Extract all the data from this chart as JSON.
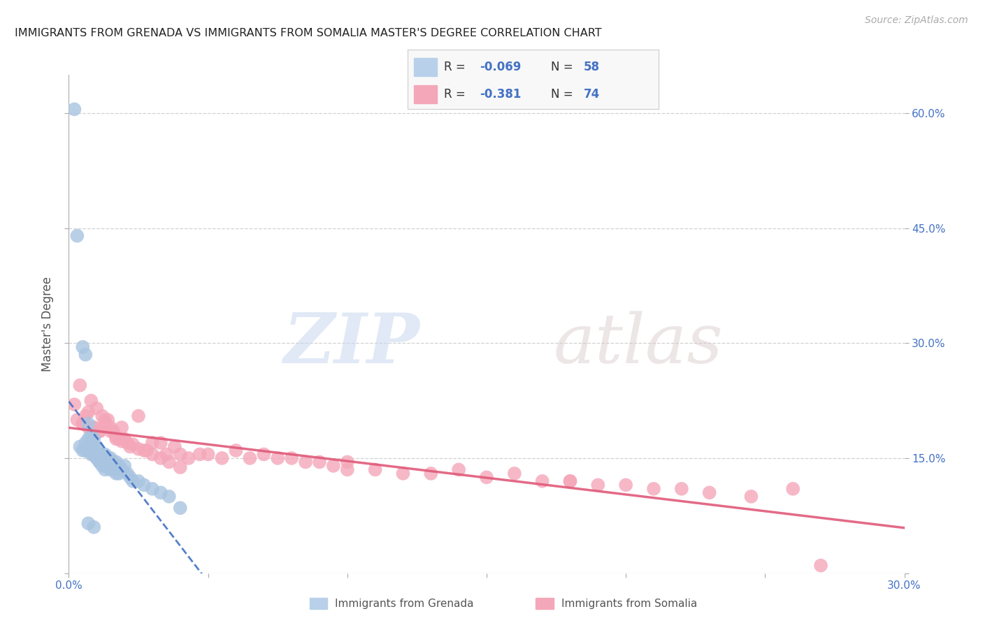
{
  "title": "IMMIGRANTS FROM GRENADA VS IMMIGRANTS FROM SOMALIA MASTER'S DEGREE CORRELATION CHART",
  "source": "Source: ZipAtlas.com",
  "ylabel": "Master's Degree",
  "xlim": [
    0.0,
    0.3
  ],
  "ylim": [
    0.0,
    0.65
  ],
  "grenada_R": -0.069,
  "grenada_N": 58,
  "somalia_R": -0.381,
  "somalia_N": 74,
  "grenada_color": "#a8c4e0",
  "somalia_color": "#f4a7b9",
  "grenada_line_color": "#4472c4",
  "somalia_line_color": "#e05a7a",
  "background_color": "#ffffff",
  "grid_color": "#cccccc",
  "tick_color_blue": "#4472c4",
  "axis_label_color": "#555555",
  "grenada_x": [
    0.002,
    0.003,
    0.004,
    0.005,
    0.005,
    0.006,
    0.006,
    0.007,
    0.007,
    0.007,
    0.008,
    0.008,
    0.008,
    0.009,
    0.009,
    0.009,
    0.01,
    0.01,
    0.01,
    0.011,
    0.011,
    0.011,
    0.012,
    0.012,
    0.013,
    0.013,
    0.013,
    0.014,
    0.014,
    0.015,
    0.015,
    0.016,
    0.016,
    0.017,
    0.017,
    0.018,
    0.018,
    0.019,
    0.02,
    0.021,
    0.022,
    0.023,
    0.025,
    0.027,
    0.03,
    0.033,
    0.036,
    0.04,
    0.006,
    0.007,
    0.008,
    0.009,
    0.01,
    0.011,
    0.012,
    0.013,
    0.007,
    0.009
  ],
  "grenada_y": [
    0.605,
    0.44,
    0.165,
    0.295,
    0.16,
    0.285,
    0.16,
    0.195,
    0.175,
    0.16,
    0.18,
    0.165,
    0.155,
    0.175,
    0.165,
    0.155,
    0.165,
    0.155,
    0.15,
    0.155,
    0.148,
    0.145,
    0.155,
    0.148,
    0.155,
    0.145,
    0.14,
    0.15,
    0.14,
    0.15,
    0.135,
    0.145,
    0.135,
    0.145,
    0.13,
    0.14,
    0.13,
    0.135,
    0.14,
    0.13,
    0.125,
    0.12,
    0.12,
    0.115,
    0.11,
    0.105,
    0.1,
    0.085,
    0.17,
    0.165,
    0.16,
    0.155,
    0.15,
    0.145,
    0.14,
    0.135,
    0.065,
    0.06
  ],
  "somalia_x": [
    0.002,
    0.003,
    0.004,
    0.005,
    0.006,
    0.007,
    0.008,
    0.009,
    0.01,
    0.011,
    0.012,
    0.013,
    0.014,
    0.015,
    0.016,
    0.017,
    0.018,
    0.019,
    0.02,
    0.022,
    0.025,
    0.028,
    0.03,
    0.033,
    0.035,
    0.038,
    0.04,
    0.043,
    0.047,
    0.05,
    0.055,
    0.06,
    0.065,
    0.07,
    0.075,
    0.08,
    0.085,
    0.09,
    0.095,
    0.1,
    0.11,
    0.12,
    0.13,
    0.14,
    0.15,
    0.16,
    0.17,
    0.18,
    0.19,
    0.2,
    0.21,
    0.22,
    0.23,
    0.245,
    0.26,
    0.005,
    0.007,
    0.009,
    0.011,
    0.013,
    0.015,
    0.017,
    0.019,
    0.021,
    0.023,
    0.025,
    0.027,
    0.03,
    0.033,
    0.036,
    0.04,
    0.1,
    0.18,
    0.27
  ],
  "somalia_y": [
    0.22,
    0.2,
    0.245,
    0.195,
    0.205,
    0.21,
    0.225,
    0.19,
    0.215,
    0.185,
    0.205,
    0.2,
    0.2,
    0.19,
    0.185,
    0.175,
    0.175,
    0.19,
    0.175,
    0.165,
    0.205,
    0.16,
    0.17,
    0.17,
    0.155,
    0.165,
    0.155,
    0.15,
    0.155,
    0.155,
    0.15,
    0.16,
    0.15,
    0.155,
    0.15,
    0.15,
    0.145,
    0.145,
    0.14,
    0.145,
    0.135,
    0.13,
    0.13,
    0.135,
    0.125,
    0.13,
    0.12,
    0.12,
    0.115,
    0.115,
    0.11,
    0.11,
    0.105,
    0.1,
    0.11,
    0.195,
    0.19,
    0.19,
    0.185,
    0.195,
    0.185,
    0.178,
    0.172,
    0.17,
    0.168,
    0.162,
    0.16,
    0.155,
    0.15,
    0.145,
    0.138,
    0.135,
    0.12,
    0.01
  ]
}
